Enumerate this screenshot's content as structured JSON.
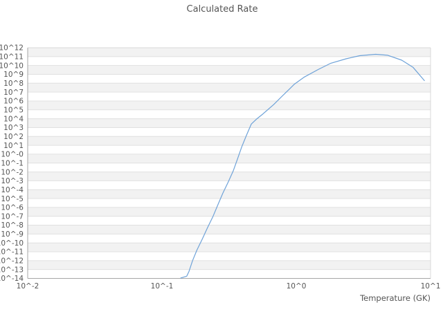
{
  "page": {
    "title": "Calculated Rate"
  },
  "chart_data": {
    "type": "line",
    "title": "Calculated Rate",
    "xlabel": "Temperature (GK)",
    "ylabel": "",
    "x_scale": "log",
    "y_scale": "log",
    "xlim": [
      0.01,
      10
    ],
    "ylim_exponents": [
      12,
      -14
    ],
    "grid": "alternating-horizontal-bands",
    "legend": "none",
    "x_ticks": [
      {
        "label": "10^-2",
        "T": 0.01
      },
      {
        "label": "10^-1",
        "T": 0.1
      },
      {
        "label": "10^0",
        "T": 1
      },
      {
        "label": "10^1",
        "T": 10
      }
    ],
    "y_tick_labels": [
      "10^12",
      "10^11",
      "10^10",
      "10^9",
      "10^8",
      "10^7",
      "10^6",
      "10^5",
      "10^4",
      "10^3",
      "10^2",
      "10^1",
      "10^-0",
      "10^-1",
      "10^-2",
      "10^-3",
      "10^-4",
      "10^-5",
      "10^-6",
      "10^-7",
      "10^-8",
      "10^-9",
      "10^-10",
      "10^-11",
      "10^-12",
      "10^-13",
      "10^-14"
    ],
    "series": [
      {
        "name": "calculated-rate",
        "color": "#6ea2d8",
        "points_T_log10rate": [
          [
            0.138,
            -13.95
          ],
          [
            0.153,
            -13.75
          ],
          [
            0.159,
            -13.2
          ],
          [
            0.169,
            -12.0
          ],
          [
            0.182,
            -10.8
          ],
          [
            0.199,
            -9.6
          ],
          [
            0.218,
            -8.3
          ],
          [
            0.24,
            -7.0
          ],
          [
            0.261,
            -5.7
          ],
          [
            0.284,
            -4.4
          ],
          [
            0.312,
            -3.1
          ],
          [
            0.34,
            -1.85
          ],
          [
            0.366,
            -0.5
          ],
          [
            0.392,
            0.8
          ],
          [
            0.425,
            2.1
          ],
          [
            0.463,
            3.4
          ],
          [
            0.51,
            4.0
          ],
          [
            0.566,
            4.55
          ],
          [
            0.68,
            5.6
          ],
          [
            0.78,
            6.5
          ],
          [
            0.87,
            7.2
          ],
          [
            0.97,
            7.9
          ],
          [
            1.15,
            8.7
          ],
          [
            1.46,
            9.55
          ],
          [
            1.81,
            10.25
          ],
          [
            2.35,
            10.75
          ],
          [
            2.97,
            11.1
          ],
          [
            3.9,
            11.26
          ],
          [
            4.8,
            11.15
          ],
          [
            6.1,
            10.6
          ],
          [
            7.4,
            9.8
          ],
          [
            9.0,
            8.3
          ]
        ]
      }
    ]
  },
  "colors": {
    "background": "#ffffff",
    "band_gray": "#f2f2f2",
    "band_white": "#ffffff",
    "gridline": "#e0e0e0",
    "axis_dark": "#a6a6a6",
    "axis_light": "#d8d8d8",
    "text": "#545454",
    "curve": "#6ea2d8"
  }
}
